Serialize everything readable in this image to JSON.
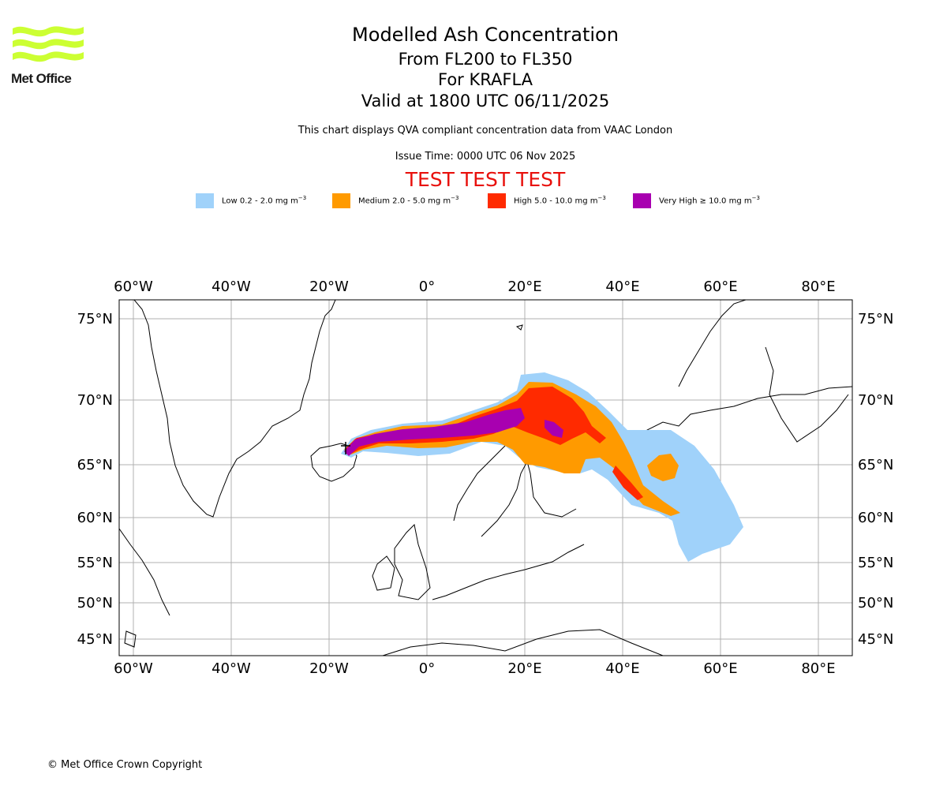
{
  "logo": {
    "text": "Met Office",
    "color": "#ccff33"
  },
  "header": {
    "title": "Modelled Ash Concentration",
    "levels": "From FL200 to FL350",
    "volcano": "For KRAFLA",
    "valid": "Valid at 1800 UTC 06/11/2025",
    "subtitle": "This chart displays QVA compliant concentration data from VAAC London",
    "issue_time": "Issue Time: 0000 UTC 06 Nov 2025",
    "test_banner": "TEST TEST TEST"
  },
  "legend": [
    {
      "label": "Low 0.2 - 2.0 mg m",
      "unit_exp": "−3",
      "color": "#a0d2fa"
    },
    {
      "label": "Medium 2.0 - 5.0 mg m",
      "unit_exp": "−3",
      "color": "#ff9a00"
    },
    {
      "label": "High 5.0 - 10.0 mg m",
      "unit_exp": "−3",
      "color": "#ff2a00"
    },
    {
      "label": "Very High  ≥  10.0 mg m",
      "unit_exp": "−3",
      "color": "#a800b0"
    }
  ],
  "map": {
    "lon_ticks": [
      "60°W",
      "40°W",
      "20°W",
      "0°",
      "20°E",
      "40°E",
      "60°E",
      "80°E"
    ],
    "lat_ticks": [
      "75°N",
      "70°N",
      "65°N",
      "60°N",
      "55°N",
      "50°N",
      "45°N"
    ],
    "grid": true
  },
  "footer": {
    "copyright": "© Met Office Crown Copyright"
  }
}
